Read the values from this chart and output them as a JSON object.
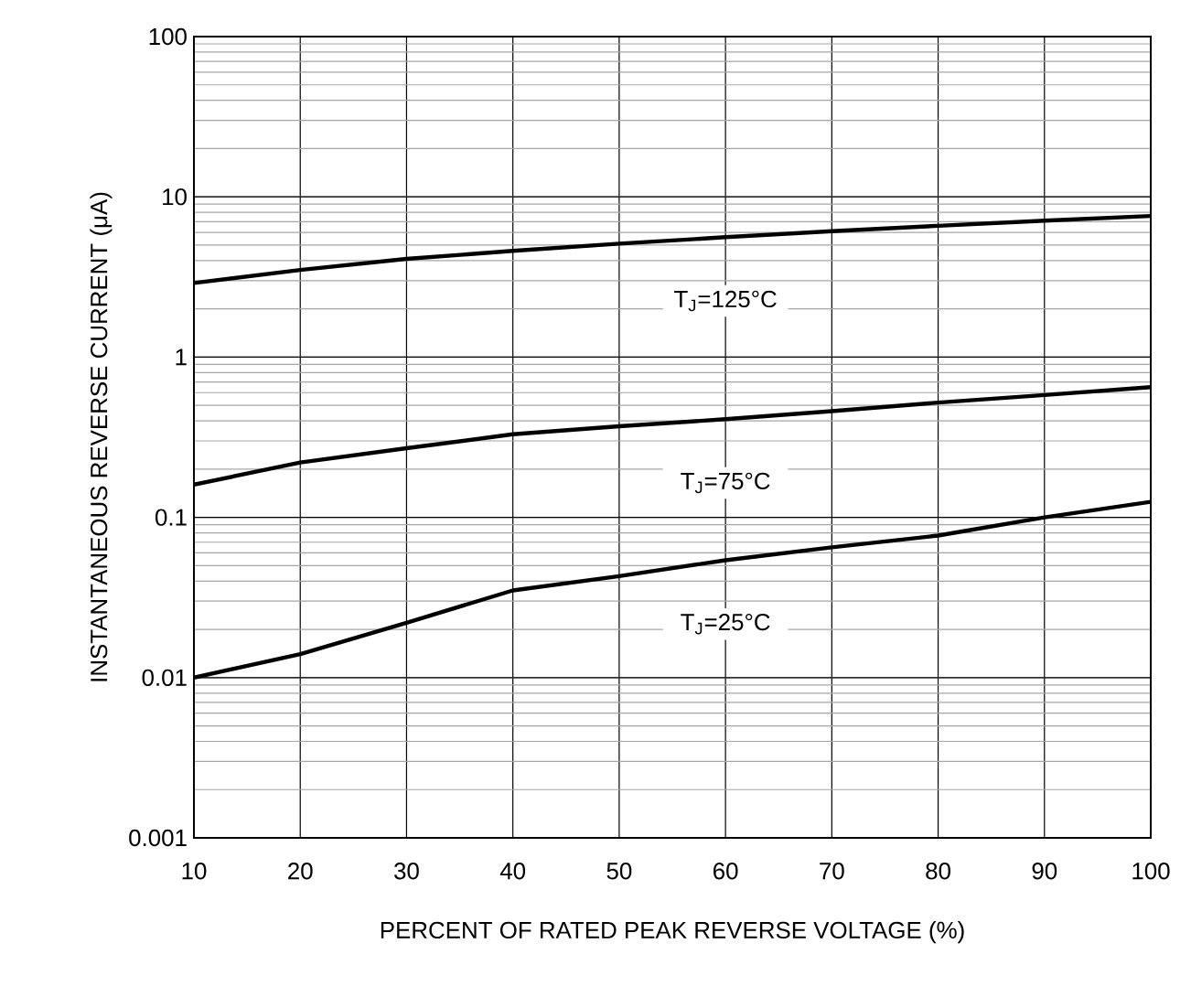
{
  "chart_data": {
    "type": "line",
    "xlabel": "PERCENT OF RATED PEAK REVERSE VOLTAGE (%)",
    "ylabel": "INSTANTANEOUS REVERSE CURRENT (μA)",
    "x": [
      10,
      20,
      30,
      40,
      50,
      60,
      70,
      80,
      90,
      100
    ],
    "series": [
      {
        "name": "T$_{J}$=125°C",
        "color": "#000000",
        "values": [
          2.9,
          3.5,
          4.1,
          4.6,
          5.1,
          5.6,
          6.1,
          6.6,
          7.1,
          7.6
        ]
      },
      {
        "name": "T$_{J}$=75°C",
        "color": "#000000",
        "values": [
          0.16,
          0.22,
          0.27,
          0.33,
          0.37,
          0.41,
          0.46,
          0.52,
          0.58,
          0.65
        ]
      },
      {
        "name": "T$_{J}$=25°C",
        "color": "#000000",
        "values": [
          0.01,
          0.014,
          0.022,
          0.035,
          0.043,
          0.054,
          0.065,
          0.077,
          0.1,
          0.125
        ]
      }
    ],
    "xlim": [
      10,
      100
    ],
    "ylim": [
      0.001,
      100
    ],
    "xticks": [
      10,
      20,
      30,
      40,
      50,
      60,
      70,
      80,
      90,
      100
    ],
    "yticks": [
      0.001,
      0.01,
      0.1,
      1,
      10,
      100
    ],
    "log": "y",
    "grid": true,
    "legend": false,
    "marker": "none",
    "line_style": "solid"
  }
}
